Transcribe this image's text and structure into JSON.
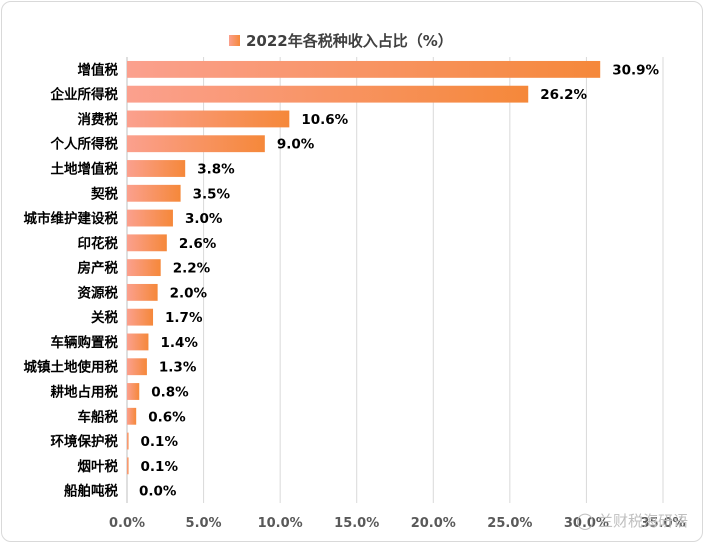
{
  "chart_data": {
    "type": "bar",
    "orientation": "horizontal",
    "title": "2022年各税种收入占比（%）",
    "legend": {
      "label": "2022年各税种收入占比（%）",
      "position": "top"
    },
    "categories": [
      "增值税",
      "企业所得税",
      "消费税",
      "个人所得税",
      "土地增值税",
      "契税",
      "城市维护建设税",
      "印花税",
      "房产税",
      "资源税",
      "关税",
      "车辆购置税",
      "城镇土地使用税",
      "耕地占用税",
      "车船税",
      "环境保护税",
      "烟叶税",
      "船舶吨税"
    ],
    "values": [
      30.9,
      26.2,
      10.6,
      9.0,
      3.8,
      3.5,
      3.0,
      2.6,
      2.2,
      2.0,
      1.7,
      1.4,
      1.3,
      0.8,
      0.6,
      0.1,
      0.1,
      0.0
    ],
    "value_labels": [
      "30.9%",
      "26.2%",
      "10.6%",
      "9.0%",
      "3.8%",
      "3.5%",
      "3.0%",
      "2.6%",
      "2.2%",
      "2.0%",
      "1.7%",
      "1.4%",
      "1.3%",
      "0.8%",
      "0.6%",
      "0.1%",
      "0.1%",
      "0.0%"
    ],
    "xlim": [
      0,
      35
    ],
    "xticks": [
      "0.0%",
      "5.0%",
      "10.0%",
      "15.0%",
      "20.0%",
      "25.0%",
      "30.0%",
      "35.0%"
    ],
    "grid": true,
    "colors": {
      "bar_start": "#FBA08E",
      "bar_end": "#F5883A",
      "grid": "#d9d9d9",
      "text": "#000000"
    }
  },
  "watermark": {
    "icon": "wechat-icon",
    "text": "兰财税海研语"
  }
}
